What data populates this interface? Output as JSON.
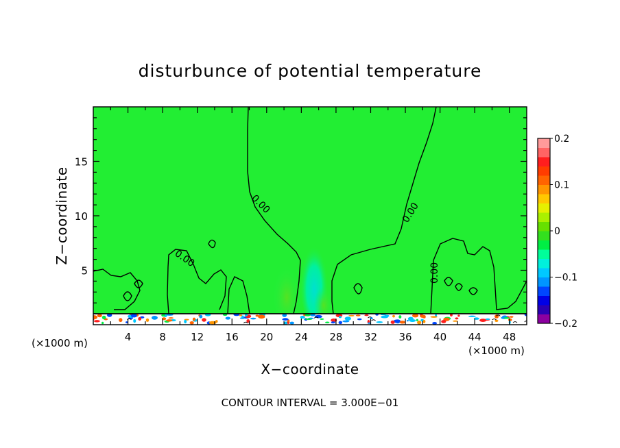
{
  "chart_data": {
    "type": "heatmap",
    "title": "disturbunce of potential temperature",
    "xlabel": "X−coordinate",
    "ylabel": "Z−coordinate",
    "x_unit": "(×1000 m)",
    "y_unit": "(×1000 m)",
    "xlim": [
      0,
      50
    ],
    "ylim": [
      0,
      20
    ],
    "xticks": [
      4,
      8,
      12,
      16,
      20,
      24,
      28,
      32,
      36,
      40,
      44,
      48
    ],
    "yticks": [
      5,
      10,
      15
    ],
    "colorbar": {
      "range": [
        -0.2,
        0.2
      ],
      "tick_labels": [
        "0.2",
        "0.1",
        "0",
        "−0.1",
        "−0.2"
      ],
      "tick_values": [
        0.2,
        0.1,
        0,
        -0.1,
        -0.2
      ],
      "colors": [
        "#8c00a0",
        "#2a00b4",
        "#0000e6",
        "#0046ff",
        "#0096ff",
        "#00c8ff",
        "#00f0dc",
        "#00ff9a",
        "#00ee44",
        "#33e01e",
        "#66e000",
        "#aaf000",
        "#e6f000",
        "#ffc800",
        "#ff9600",
        "#ff6400",
        "#ff3c00",
        "#ff1e1e",
        "#ff6464",
        "#ff9a9a"
      ]
    },
    "contour_label": "0.00",
    "footer": "CONTOUR INTERVAL = 3.000E−01"
  }
}
